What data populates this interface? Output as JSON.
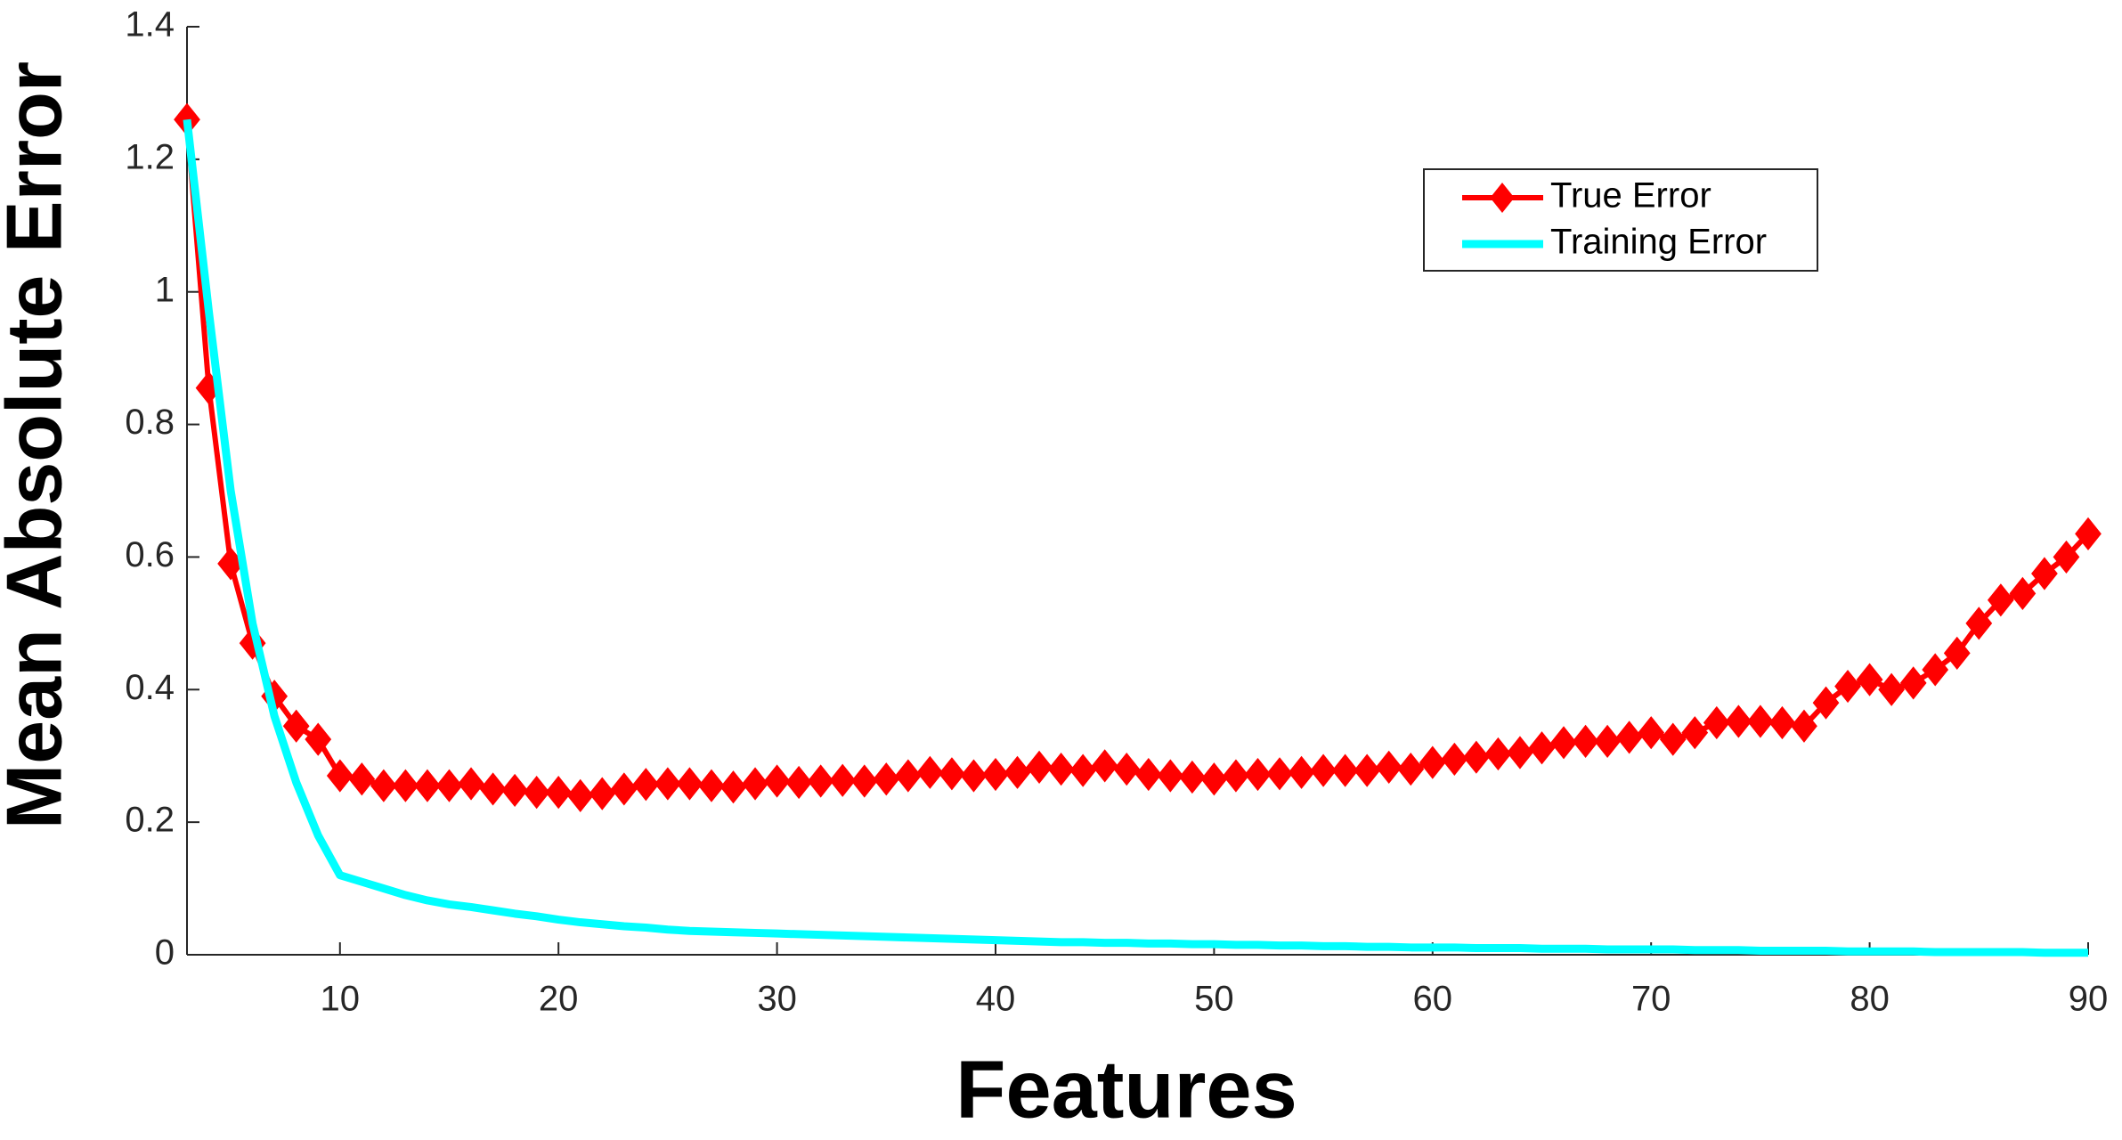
{
  "chart_data": {
    "type": "line",
    "xlabel": "Features",
    "ylabel": "Mean Absolute Error",
    "x": [
      3,
      4,
      5,
      6,
      7,
      8,
      9,
      10,
      11,
      12,
      13,
      14,
      15,
      16,
      17,
      18,
      19,
      20,
      21,
      22,
      23,
      24,
      25,
      26,
      27,
      28,
      29,
      30,
      31,
      32,
      33,
      34,
      35,
      36,
      37,
      38,
      39,
      40,
      41,
      42,
      43,
      44,
      45,
      46,
      47,
      48,
      49,
      50,
      51,
      52,
      53,
      54,
      55,
      56,
      57,
      58,
      59,
      60,
      61,
      62,
      63,
      64,
      65,
      66,
      67,
      68,
      69,
      70,
      71,
      72,
      73,
      74,
      75,
      76,
      77,
      78,
      79,
      80,
      81,
      82,
      83,
      84,
      85,
      86,
      87,
      88,
      89,
      90
    ],
    "series": [
      {
        "name": "True Error",
        "color": "#ff0000",
        "marker": "diamond",
        "values": [
          1.26,
          0.855,
          0.59,
          0.47,
          0.39,
          0.345,
          0.325,
          0.27,
          0.265,
          0.255,
          0.255,
          0.255,
          0.255,
          0.258,
          0.25,
          0.248,
          0.245,
          0.245,
          0.24,
          0.243,
          0.25,
          0.257,
          0.258,
          0.258,
          0.255,
          0.253,
          0.258,
          0.262,
          0.26,
          0.262,
          0.263,
          0.262,
          0.265,
          0.27,
          0.275,
          0.273,
          0.27,
          0.272,
          0.275,
          0.283,
          0.28,
          0.278,
          0.285,
          0.28,
          0.272,
          0.27,
          0.268,
          0.265,
          0.27,
          0.272,
          0.273,
          0.275,
          0.278,
          0.278,
          0.278,
          0.283,
          0.28,
          0.29,
          0.295,
          0.298,
          0.303,
          0.305,
          0.312,
          0.32,
          0.322,
          0.322,
          0.328,
          0.335,
          0.325,
          0.335,
          0.35,
          0.352,
          0.352,
          0.35,
          0.345,
          0.38,
          0.405,
          0.415,
          0.4,
          0.41,
          0.43,
          0.455,
          0.5,
          0.535,
          0.545,
          0.575,
          0.6,
          0.635
        ]
      },
      {
        "name": "Training Error",
        "color": "#00ffff",
        "values": [
          1.26,
          0.97,
          0.7,
          0.5,
          0.36,
          0.26,
          0.18,
          0.12,
          0.11,
          0.1,
          0.09,
          0.082,
          0.076,
          0.072,
          0.067,
          0.062,
          0.058,
          0.053,
          0.049,
          0.046,
          0.043,
          0.041,
          0.038,
          0.036,
          0.035,
          0.034,
          0.033,
          0.032,
          0.031,
          0.03,
          0.029,
          0.028,
          0.027,
          0.026,
          0.025,
          0.024,
          0.023,
          0.022,
          0.021,
          0.02,
          0.019,
          0.019,
          0.018,
          0.018,
          0.017,
          0.017,
          0.016,
          0.016,
          0.015,
          0.015,
          0.014,
          0.014,
          0.013,
          0.013,
          0.012,
          0.012,
          0.011,
          0.011,
          0.011,
          0.01,
          0.01,
          0.01,
          0.009,
          0.009,
          0.009,
          0.008,
          0.008,
          0.008,
          0.008,
          0.007,
          0.007,
          0.007,
          0.006,
          0.006,
          0.006,
          0.006,
          0.005,
          0.005,
          0.005,
          0.005,
          0.004,
          0.004,
          0.004,
          0.004,
          0.004,
          0.003,
          0.003,
          0.003
        ]
      }
    ],
    "xlim": [
      3,
      90
    ],
    "xticks": [
      10,
      20,
      30,
      40,
      50,
      60,
      70,
      80,
      90
    ],
    "ylim": [
      0,
      1.4
    ],
    "yticks": [
      0,
      0.2,
      0.4,
      0.6,
      0.8,
      1,
      1.2,
      1.4
    ],
    "legend": "upper right"
  }
}
